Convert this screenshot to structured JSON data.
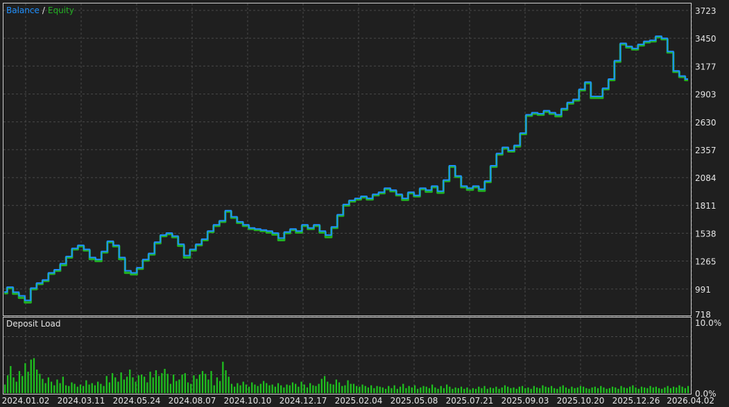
{
  "colors": {
    "background": "#1f1f1f",
    "frame": "#cfcfcf",
    "grid": "#4a4a4a",
    "text": "#e6e6e6",
    "balance": "#1e90ff",
    "equity": "#22b022",
    "deposit_load": "#1fbf1f"
  },
  "legend": {
    "balance": "Balance",
    "separator": "/",
    "equity": "Equity"
  },
  "load_panel": {
    "title": "Deposit Load"
  },
  "chart_data": [
    {
      "type": "line",
      "title": "",
      "legend_position": "top-left",
      "grid": true,
      "ylim": [
        718,
        3723
      ],
      "y_ticks": [
        "3723",
        "3450",
        "3177",
        "2903",
        "2630",
        "2357",
        "2084",
        "1811",
        "1538",
        "1265",
        "991",
        "718"
      ],
      "x_ticks": [
        "2024.01.02",
        "2024.03.11",
        "2024.05.24",
        "2024.08.07",
        "2024.10.10",
        "2024.12.17",
        "2025.02.04",
        "2025.05.08",
        "2025.07.21",
        "2025.09.03",
        "2025.10.20",
        "2025.12.26",
        "2026.04.02"
      ],
      "series": [
        {
          "name": "Balance",
          "values": [
            962,
            1010,
            960,
            925,
            880,
            1000,
            1050,
            1080,
            1150,
            1180,
            1240,
            1310,
            1390,
            1420,
            1380,
            1300,
            1280,
            1360,
            1460,
            1420,
            1300,
            1170,
            1150,
            1200,
            1280,
            1340,
            1450,
            1520,
            1540,
            1510,
            1430,
            1320,
            1380,
            1430,
            1480,
            1560,
            1620,
            1660,
            1760,
            1700,
            1650,
            1620,
            1590,
            1580,
            1570,
            1560,
            1540,
            1490,
            1550,
            1580,
            1560,
            1620,
            1590,
            1620,
            1560,
            1520,
            1600,
            1720,
            1820,
            1860,
            1880,
            1900,
            1880,
            1920,
            1940,
            1980,
            1960,
            1920,
            1880,
            1940,
            1910,
            1980,
            1960,
            2000,
            1950,
            2060,
            2200,
            2100,
            2000,
            1980,
            2000,
            1970,
            2050,
            2200,
            2320,
            2380,
            2350,
            2400,
            2520,
            2700,
            2720,
            2710,
            2740,
            2720,
            2700,
            2760,
            2820,
            2850,
            2950,
            3020,
            2880,
            2880,
            2960,
            3050,
            3230,
            3400,
            3370,
            3350,
            3390,
            3420,
            3430,
            3470,
            3450,
            3320,
            3130,
            3080,
            3050
          ]
        },
        {
          "name": "Equity",
          "values": [
            950,
            1000,
            945,
            905,
            860,
            990,
            1040,
            1070,
            1140,
            1170,
            1225,
            1300,
            1380,
            1410,
            1370,
            1285,
            1265,
            1350,
            1450,
            1410,
            1285,
            1150,
            1135,
            1190,
            1270,
            1330,
            1440,
            1510,
            1530,
            1500,
            1415,
            1300,
            1370,
            1420,
            1470,
            1550,
            1610,
            1650,
            1750,
            1690,
            1640,
            1610,
            1580,
            1570,
            1560,
            1545,
            1525,
            1470,
            1540,
            1570,
            1545,
            1610,
            1580,
            1610,
            1545,
            1500,
            1590,
            1710,
            1810,
            1850,
            1870,
            1890,
            1870,
            1910,
            1930,
            1970,
            1950,
            1910,
            1865,
            1930,
            1900,
            1970,
            1945,
            1990,
            1935,
            2050,
            2190,
            2090,
            1990,
            1965,
            1990,
            1955,
            2040,
            2190,
            2310,
            2370,
            2340,
            2390,
            2510,
            2690,
            2710,
            2700,
            2730,
            2710,
            2685,
            2750,
            2810,
            2840,
            2940,
            3010,
            2865,
            2865,
            2950,
            3040,
            3220,
            3390,
            3360,
            3340,
            3380,
            3410,
            3420,
            3460,
            3440,
            3310,
            3120,
            3070,
            3040
          ]
        }
      ]
    },
    {
      "type": "bar",
      "title": "Deposit Load",
      "grid": true,
      "ylim": [
        0,
        10
      ],
      "y_ticks": [
        "10.0%",
        "0.0%"
      ],
      "values": [
        1.2,
        2.5,
        3.8,
        2.2,
        1.6,
        3.1,
        2.4,
        4.2,
        3.0,
        4.7,
        4.9,
        3.3,
        2.7,
        2.0,
        1.4,
        2.2,
        1.6,
        1.1,
        1.9,
        1.4,
        2.3,
        1.1,
        1.0,
        1.5,
        1.3,
        0.9,
        1.2,
        1.0,
        1.8,
        1.2,
        1.4,
        1.1,
        1.6,
        1.3,
        1.0,
        2.4,
        1.5,
        2.8,
        2.2,
        1.6,
        2.9,
        1.9,
        2.3,
        3.3,
        2.2,
        1.6,
        2.5,
        2.6,
        2.3,
        1.5,
        3.0,
        2.2,
        3.2,
        2.4,
        2.8,
        3.4,
        2.7,
        1.3,
        2.6,
        1.7,
        1.9,
        2.6,
        2.8,
        1.5,
        1.3,
        2.5,
        2.0,
        2.6,
        3.1,
        2.7,
        1.9,
        3.1,
        1.1,
        2.2,
        1.7,
        4.4,
        3.2,
        2.3,
        1.3,
        0.9,
        1.4,
        1.1,
        1.6,
        1.2,
        0.9,
        1.5,
        1.2,
        1.0,
        1.3,
        1.7,
        1.4,
        1.1,
        1.2,
        0.9,
        1.4,
        1.1,
        0.8,
        1.2,
        1.1,
        1.5,
        1.3,
        0.9,
        1.6,
        1.2,
        0.8,
        1.4,
        1.1,
        1.0,
        1.3,
        2.0,
        2.4,
        1.6,
        1.3,
        1.2,
        1.9,
        1.5,
        1.0,
        1.1,
        1.8,
        1.3,
        1.3,
        1.0,
        0.9,
        1.2,
        1.0,
        0.8,
        1.1,
        0.7,
        1.0,
        0.9,
        0.8,
        0.6,
        1.0,
        0.7,
        1.1,
        0.6,
        0.9,
        1.3,
        0.7,
        1.0,
        0.8,
        1.1,
        0.6,
        0.8,
        1.0,
        0.9,
        0.7,
        1.2,
        0.8,
        0.6,
        1.0,
        0.7,
        1.2,
        0.9,
        0.6,
        0.8,
        0.7,
        0.9,
        0.6,
        0.8,
        0.5,
        0.7,
        0.6,
        0.9,
        0.7,
        1.0,
        0.6,
        0.8,
        0.7,
        0.9,
        0.6,
        0.8,
        1.1,
        0.9,
        0.7,
        0.8,
        0.6,
        0.9,
        1.0,
        0.7,
        0.8,
        0.6,
        1.0,
        0.8,
        0.7,
        1.1,
        0.9,
        0.8,
        1.0,
        0.7,
        0.6,
        0.9,
        1.1,
        0.8,
        0.6,
        0.9,
        0.7,
        0.8,
        1.0,
        0.9,
        0.7,
        0.6,
        0.8,
        0.9,
        0.7,
        1.0,
        0.8,
        0.6,
        0.7,
        0.9,
        0.8,
        0.6,
        1.0,
        0.8,
        0.7,
        0.9,
        1.1,
        0.8,
        0.6,
        0.9,
        0.8,
        0.7,
        1.0,
        0.8,
        0.9,
        0.7,
        0.6,
        0.8,
        1.0,
        0.7,
        0.9,
        0.8,
        1.1,
        0.9,
        0.7,
        1.0
      ]
    }
  ]
}
